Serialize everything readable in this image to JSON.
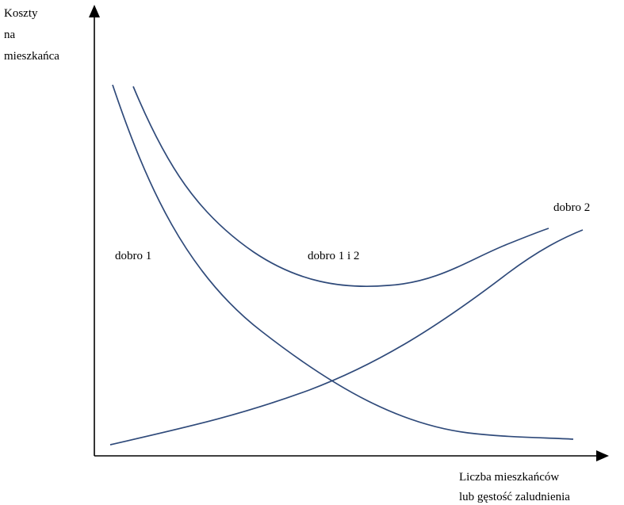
{
  "y_axis_label_lines": [
    "Koszty",
    "na",
    "mieszkańca"
  ],
  "x_axis_label_lines": [
    "Liczba mieszkańców",
    "lub gęstość zaludnienia"
  ],
  "curve_labels": {
    "dobro_1": "dobro 1",
    "dobro_1_i_2": "dobro 1 i 2",
    "dobro_2": "dobro 2"
  },
  "colors": {
    "curves": "#2f4a7a",
    "axes": "#000000"
  }
}
